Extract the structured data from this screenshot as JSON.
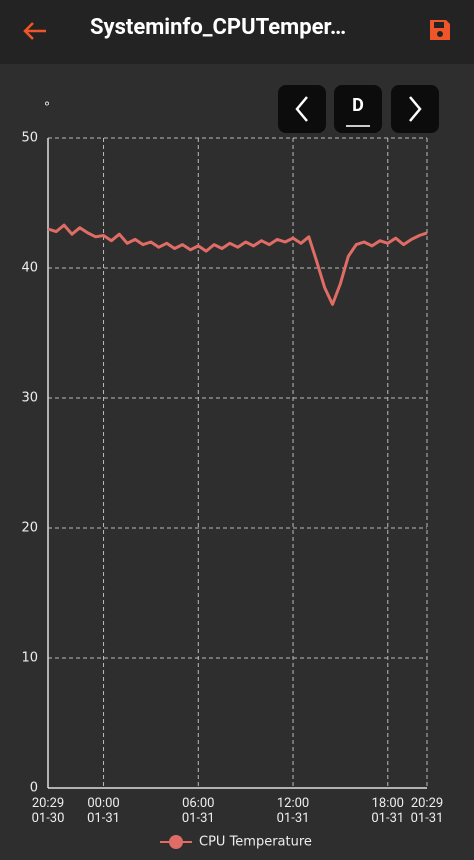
{
  "header": {
    "title": "Systeminfo_CPUTemper…"
  },
  "controls": {
    "period": "D"
  },
  "chart_data": {
    "type": "line",
    "y_unit": "°",
    "x": [
      "01-30 20:29",
      "01-30 21:00",
      "01-30 21:30",
      "01-30 22:00",
      "01-30 22:30",
      "01-30 23:00",
      "01-30 23:30",
      "01-31 00:00",
      "01-31 00:30",
      "01-31 01:00",
      "01-31 01:30",
      "01-31 02:00",
      "01-31 02:30",
      "01-31 03:00",
      "01-31 03:30",
      "01-31 04:00",
      "01-31 04:30",
      "01-31 05:00",
      "01-31 05:30",
      "01-31 06:00",
      "01-31 06:30",
      "01-31 07:00",
      "01-31 07:30",
      "01-31 08:00",
      "01-31 08:30",
      "01-31 09:00",
      "01-31 09:30",
      "01-31 10:00",
      "01-31 10:30",
      "01-31 11:00",
      "01-31 11:30",
      "01-31 12:00",
      "01-31 12:30",
      "01-31 13:00",
      "01-31 13:30",
      "01-31 14:00",
      "01-31 14:30",
      "01-31 15:00",
      "01-31 15:30",
      "01-31 16:00",
      "01-31 16:30",
      "01-31 17:00",
      "01-31 17:30",
      "01-31 18:00",
      "01-31 18:30",
      "01-31 19:00",
      "01-31 19:30",
      "01-31 20:00",
      "01-31 20:29"
    ],
    "series": [
      {
        "name": "CPU Temperature",
        "color": "#e06c66",
        "values": [
          43.0,
          42.8,
          43.3,
          42.6,
          43.1,
          42.7,
          42.4,
          42.5,
          42.1,
          42.6,
          41.9,
          42.2,
          41.8,
          42.0,
          41.6,
          41.9,
          41.5,
          41.8,
          41.4,
          41.7,
          41.3,
          41.8,
          41.5,
          41.9,
          41.6,
          42.0,
          41.7,
          42.1,
          41.8,
          42.2,
          42.0,
          42.3,
          41.9,
          42.4,
          40.5,
          38.5,
          37.2,
          38.8,
          40.9,
          41.8,
          42.0,
          41.7,
          42.1,
          41.9,
          42.3,
          41.8,
          42.2,
          42.5,
          42.7
        ]
      }
    ],
    "xlim": [
      "01-30 20:29",
      "01-31 20:29"
    ],
    "xticks": [
      {
        "value": "01-30 20:29",
        "label": "20:29\n01-30"
      },
      {
        "value": "01-31 00:00",
        "label": "00:00\n01-31"
      },
      {
        "value": "01-31 06:00",
        "label": "06:00\n01-31"
      },
      {
        "value": "01-31 12:00",
        "label": "12:00\n01-31"
      },
      {
        "value": "01-31 18:00",
        "label": "18:00\n01-31"
      },
      {
        "value": "01-31 20:29",
        "label": "20:29\n01-31"
      }
    ],
    "ylim": [
      0,
      50
    ],
    "yticks": [
      0,
      10,
      20,
      30,
      40,
      50
    ],
    "grid": true
  }
}
